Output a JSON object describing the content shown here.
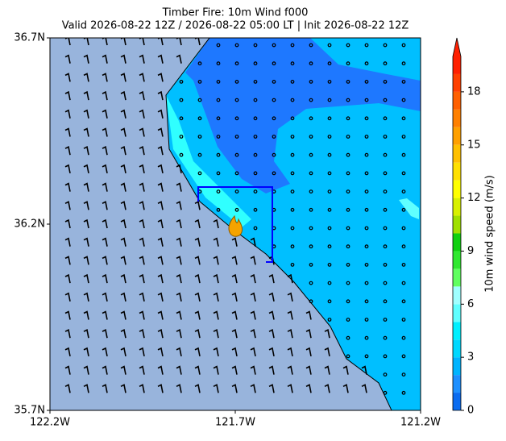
{
  "title": "Timber Fire: 10m Wind f000",
  "subtitle": "Valid 2026-08-22 12Z / 2026-08-22 05:00 LT | Init 2026-08-22 12Z",
  "map": {
    "xlim": [
      -122.2,
      -121.2
    ],
    "ylim": [
      35.7,
      36.7
    ],
    "xticks": [
      {
        "value": -122.2,
        "label": "122.2W"
      },
      {
        "value": -121.7,
        "label": "121.7W"
      },
      {
        "value": -121.2,
        "label": "121.2W"
      }
    ],
    "yticks": [
      {
        "value": 35.7,
        "label": "35.7N"
      },
      {
        "value": 36.2,
        "label": "36.2N"
      },
      {
        "value": 36.7,
        "label": "36.7N"
      }
    ]
  },
  "colorbar": {
    "label": "10m wind speed (m/s)",
    "lim": [
      0,
      20
    ],
    "levels": [
      0,
      1,
      2,
      3,
      4,
      5,
      6,
      7,
      8,
      9,
      10,
      11,
      12,
      13,
      14,
      15,
      16,
      17,
      18,
      19,
      20
    ],
    "colors": [
      "#0a6cf0",
      "#1e90ff",
      "#00b4ff",
      "#00d8ff",
      "#00f0ff",
      "#60ffff",
      "#a0ffff",
      "#60ff60",
      "#30e830",
      "#10d010",
      "#a0e000",
      "#d8f000",
      "#ffff00",
      "#ffe000",
      "#ffc000",
      "#ffa000",
      "#ff8000",
      "#ff6000",
      "#ff4000",
      "#ff2000"
    ],
    "extend_color": "#ff2000",
    "ticks": [
      0,
      3,
      6,
      9,
      12,
      15,
      18
    ]
  }
}
